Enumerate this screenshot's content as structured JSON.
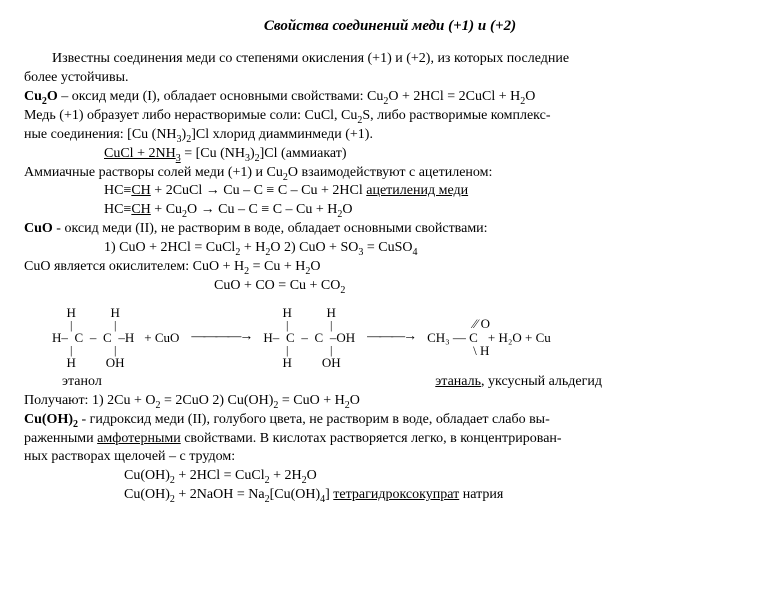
{
  "title": "Свойства соединений меди (+1) и (+2)",
  "p_intro_a": "Известны соединения меди со степенями окисления (+1) и (+2), из которых последние",
  "p_intro_b": "более устойчивы.",
  "cu2o_label": "Cu",
  "cu2o_label2": "O",
  "cu2o_desc": " – оксид меди (I), обладает основными свойствами: Cu",
  "cu2o_eq_tail": "O + 2HCl = 2CuCl + H",
  "cu2o_eq_tail2": "O",
  "cu1_line_a": "Медь (+1) образует либо нерастворимые соли: CuCl, Cu",
  "cu1_line_a2": "S, либо растворимые комплекс-",
  "cu1_line_b": "ные соединения:  [Cu (NH",
  "cu1_line_b2": ")",
  "cu1_line_b3": "]Cl  хлорид диамминмеди (+1).",
  "eq_ammiakat": "CuCl + 2NH",
  "eq_ammiakat_b": " =   [Cu (NH",
  "eq_ammiakat_c": ")",
  "eq_ammiakat_d": "]Cl   (аммиакат)",
  "amm_line": "Аммиачные растворы солей меди (+1) и Cu",
  "amm_line_b": "O взаимодействуют с ацетиленом:",
  "eq_ac1_a": "HC≡",
  "eq_ac1_ch": "CH",
  "eq_ac1_b": " + 2CuCl → Cu – C ≡ C – Cu  + 2HCl ",
  "eq_ac1_c": "ацетиленид меди",
  "eq_ac2_a": "HC≡",
  "eq_ac2_ch": "CH",
  "eq_ac2_b": " + Cu",
  "eq_ac2_c": "O → Cu – C ≡ C – Cu  + H",
  "eq_ac2_d": "O",
  "cuo_label": "CuO",
  "cuo_desc": " - оксид меди (II), не растворим в воде, обладает основными свойствами:",
  "cuo_eqs": "1)  CuO + 2HCl = CuCl",
  "cuo_eqs_b": " + H",
  "cuo_eqs_c": "O     2) CuO + SO",
  "cuo_eqs_d": " = CuSO",
  "cuo_ox": "CuO является окислителем: CuO + H",
  "cuo_ox_b": " = Cu + H",
  "cuo_ox_c": "O",
  "cuo_co": "CuO + CO = Cu + CO",
  "ethanol_label": "этанол",
  "ethanal_label_a": "этаналь",
  "ethanal_label_b": ", уксусный альдегид",
  "polu_a": "Получают: 1) 2Cu + O",
  "polu_b": " = 2CuO     2) Cu(OH)",
  "polu_c": " = CuO + H",
  "polu_d": "O",
  "cuoh2_label_a": "Cu(OH)",
  "cuoh2_desc_a": " - гидроксид меди (II), голубого цвета, не растворим в воде, обладает слабо вы-",
  "cuoh2_desc_b": "раженными ",
  "cuoh2_desc_amph": "амфотерными",
  "cuoh2_desc_c": " свойствами. В кислотах растворяется легко, в концентрирован-",
  "cuoh2_desc_d": "ных растворах щелочей – с трудом:",
  "eq_hcl": "Cu(OH)",
  "eq_hcl_b": " + 2HCl = CuCl",
  "eq_hcl_c": " + 2H",
  "eq_hcl_d": "O",
  "eq_naoh": "Cu(OH)",
  "eq_naoh_b": " + 2NaOH = Na",
  "eq_naoh_c": "[Cu(OH)",
  "eq_naoh_d": "] ",
  "eq_naoh_e": "тетрагидроксокупрат",
  "eq_naoh_f": " натрия",
  "sub2": "2",
  "sub3": "3",
  "sub4": "4",
  "struct": {
    "plusCuO": " +  CuO",
    "arrow1": "————→",
    "arrow2": "———→",
    "ch3cho_top": "⁄⁄ O",
    "ch3cho_mid": "CH₃ — C",
    "ch3cho_bot": "\\  H",
    "tail": " + H₂O + Cu"
  }
}
